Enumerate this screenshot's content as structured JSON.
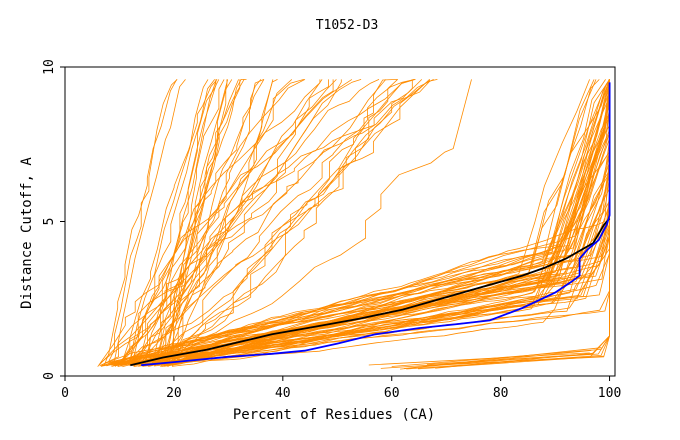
{
  "chart_data": {
    "type": "line",
    "title": "T1052-D3",
    "xlabel": "Percent of Residues (CA)",
    "ylabel": "Distance Cutoff, A",
    "xlim": [
      0,
      101
    ],
    "ylim": [
      0,
      10
    ],
    "xticks": [
      0,
      20,
      40,
      60,
      80,
      100
    ],
    "yticks": [
      0,
      5,
      10
    ],
    "grid": false,
    "legend": "none",
    "background_series_color": "#ff8c00",
    "background_series_count": 130,
    "series": [
      {
        "color": "#000000",
        "x": [
          12,
          18,
          26,
          32,
          38,
          46,
          54,
          62,
          70,
          78,
          84,
          88,
          92,
          95,
          97,
          98,
          99,
          100
        ],
        "y": [
          0.35,
          0.6,
          0.85,
          1.1,
          1.35,
          1.6,
          1.85,
          2.15,
          2.55,
          2.95,
          3.25,
          3.5,
          3.8,
          4.1,
          4.3,
          4.6,
          4.9,
          5.1
        ]
      },
      {
        "color": "#0000ff",
        "x": [
          14,
          20,
          30,
          38,
          44,
          50,
          57,
          65,
          72,
          78,
          84,
          90,
          93,
          94.5,
          94.5,
          96,
          98,
          99.5,
          100,
          100
        ],
        "y": [
          0.35,
          0.45,
          0.62,
          0.72,
          0.82,
          1.05,
          1.35,
          1.55,
          1.68,
          1.8,
          2.2,
          2.7,
          3.05,
          3.25,
          3.8,
          4.1,
          4.4,
          4.9,
          5.2,
          9.5
        ]
      }
    ]
  }
}
